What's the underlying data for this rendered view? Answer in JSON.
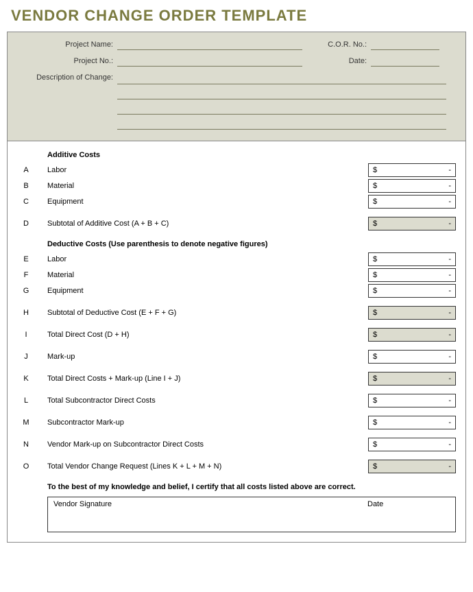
{
  "title": "VENDOR CHANGE ORDER TEMPLATE",
  "header": {
    "project_name_label": "Project Name:",
    "project_no_label": "Project No.:",
    "cor_no_label": "C.O.R. No.:",
    "date_label": "Date:",
    "description_label": "Description of Change:"
  },
  "sections": {
    "additive_heading": "Additive Costs",
    "deductive_heading": "Deductive Costs (Use parenthesis to denote negative figures)"
  },
  "rows": {
    "A": {
      "letter": "A",
      "label": "Labor",
      "symbol": "$",
      "value": "-",
      "shaded": false
    },
    "B": {
      "letter": "B",
      "label": "Material",
      "symbol": "$",
      "value": "-",
      "shaded": false
    },
    "C": {
      "letter": "C",
      "label": "Equipment",
      "symbol": "$",
      "value": "-",
      "shaded": false
    },
    "D": {
      "letter": "D",
      "label": "Subtotal of Additive Cost (A + B + C)",
      "symbol": "$",
      "value": "-",
      "shaded": true
    },
    "E": {
      "letter": "E",
      "label": "Labor",
      "symbol": "$",
      "value": "-",
      "shaded": false
    },
    "F": {
      "letter": "F",
      "label": "Material",
      "symbol": "$",
      "value": "-",
      "shaded": false
    },
    "G": {
      "letter": "G",
      "label": "Equipment",
      "symbol": "$",
      "value": "-",
      "shaded": false
    },
    "H": {
      "letter": "H",
      "label": "Subtotal of Deductive Cost (E + F + G)",
      "symbol": "$",
      "value": "-",
      "shaded": true
    },
    "I": {
      "letter": "I",
      "label": "Total Direct Cost (D + H)",
      "symbol": "$",
      "value": "-",
      "shaded": true
    },
    "J": {
      "letter": "J",
      "label": "Mark-up",
      "symbol": "$",
      "value": "-",
      "shaded": false
    },
    "K": {
      "letter": "K",
      "label": "Total Direct Costs + Mark-up (Line I + J)",
      "symbol": "$",
      "value": "-",
      "shaded": true
    },
    "L": {
      "letter": "L",
      "label": "Total Subcontractor Direct Costs",
      "symbol": "$",
      "value": "-",
      "shaded": false
    },
    "M": {
      "letter": "M",
      "label": "Subcontractor Mark-up",
      "symbol": "$",
      "value": "-",
      "shaded": false
    },
    "N": {
      "letter": "N",
      "label": "Vendor Mark-up on Subcontractor Direct Costs",
      "symbol": "$",
      "value": "-",
      "shaded": false
    },
    "O": {
      "letter": "O",
      "label": "Total Vendor Change Request (Lines K + L + M + N)",
      "symbol": "$",
      "value": "-",
      "shaded": true
    }
  },
  "certification": "To the best of my knowledge and belief, I certify that all costs listed above are correct.",
  "signature": {
    "vendor_label": "Vendor Signature",
    "date_label": "Date"
  },
  "colors": {
    "title_color": "#7a7a3f",
    "header_bg": "#dcdccf",
    "shaded_cell_bg": "#dcdccf",
    "border": "#888888",
    "underline": "#7a7a5f"
  }
}
